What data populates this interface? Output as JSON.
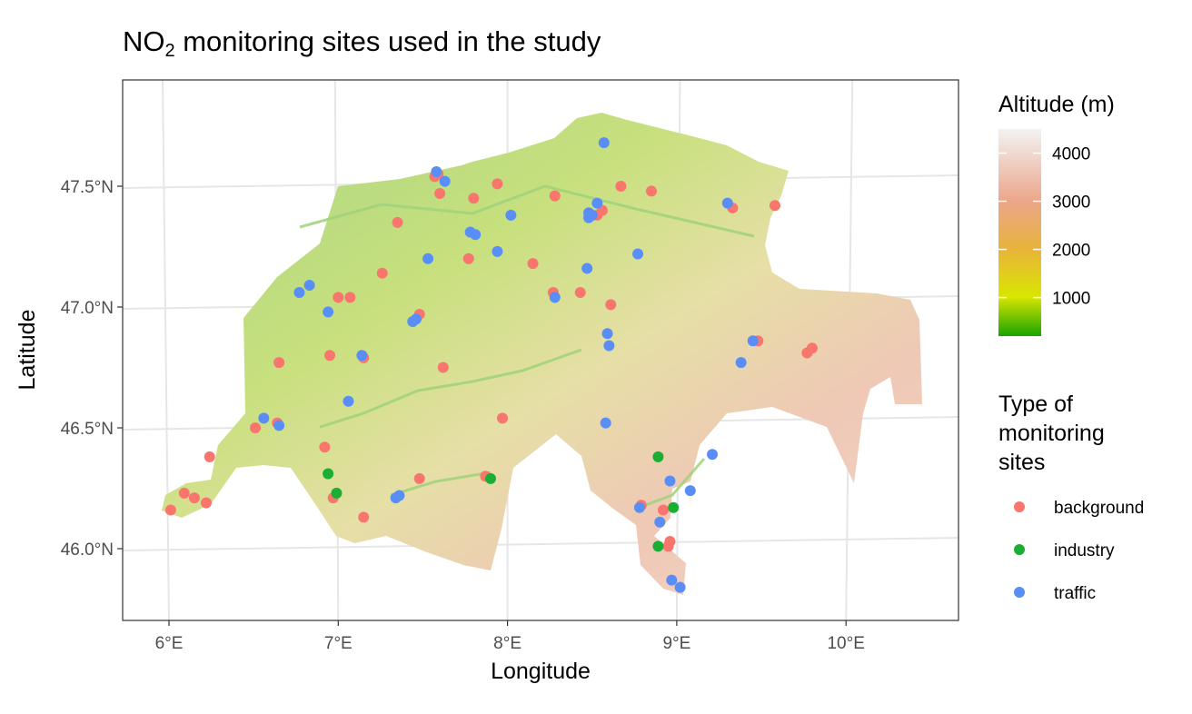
{
  "chart_data": {
    "type": "scatter",
    "title_main": "NO",
    "title_sub": "2",
    "title_rest": " monitoring sites used in the study",
    "xlabel": "Longitude",
    "ylabel": "Latitude",
    "xlim": [
      5.73,
      10.67
    ],
    "ylim": [
      45.73,
      47.93
    ],
    "x_ticks": [
      {
        "value": 6,
        "label": "6°E"
      },
      {
        "value": 7,
        "label": "7°E"
      },
      {
        "value": 8,
        "label": "8°E"
      },
      {
        "value": 9,
        "label": "9°E"
      },
      {
        "value": 10,
        "label": "10°E"
      }
    ],
    "y_ticks": [
      {
        "value": 46.0,
        "label": "46.0°N"
      },
      {
        "value": 46.5,
        "label": "46.5°N"
      },
      {
        "value": 47.0,
        "label": "47.0°N"
      },
      {
        "value": 47.5,
        "label": "47.5°N"
      }
    ],
    "grid": true,
    "altitude_legend": {
      "title": "Altitude (m)",
      "range": [
        200,
        4500
      ],
      "breaks": [
        {
          "value": 1000,
          "label": "1000"
        },
        {
          "value": 2000,
          "label": "2000"
        },
        {
          "value": 3000,
          "label": "3000"
        },
        {
          "value": 4000,
          "label": "4000"
        }
      ],
      "colors": [
        "#1aa300",
        "#d9e600",
        "#e8b33a",
        "#eba68a",
        "#f2f2f2"
      ]
    },
    "points_legend": {
      "title_lines": [
        "Type of",
        "monitoring",
        "sites"
      ],
      "placement": "right"
    },
    "series": [
      {
        "name": "background",
        "color": "#f8766d",
        "points": [
          [
            6.01,
            46.16
          ],
          [
            6.09,
            46.23
          ],
          [
            6.15,
            46.21
          ],
          [
            6.22,
            46.19
          ],
          [
            6.24,
            46.38
          ],
          [
            6.51,
            46.5
          ],
          [
            6.64,
            46.52
          ],
          [
            6.65,
            46.77
          ],
          [
            6.92,
            46.42
          ],
          [
            6.95,
            46.8
          ],
          [
            6.97,
            46.21
          ],
          [
            7.0,
            47.04
          ],
          [
            7.07,
            47.04
          ],
          [
            7.15,
            46.79
          ],
          [
            7.15,
            46.13
          ],
          [
            7.26,
            47.14
          ],
          [
            7.35,
            47.35
          ],
          [
            7.48,
            46.97
          ],
          [
            7.48,
            46.29
          ],
          [
            7.57,
            47.54
          ],
          [
            7.59,
            47.55
          ],
          [
            7.6,
            47.47
          ],
          [
            7.62,
            46.75
          ],
          [
            7.77,
            47.2
          ],
          [
            7.8,
            47.45
          ],
          [
            7.87,
            46.3
          ],
          [
            7.94,
            47.51
          ],
          [
            7.97,
            46.54
          ],
          [
            8.15,
            47.18
          ],
          [
            8.27,
            47.06
          ],
          [
            8.28,
            47.46
          ],
          [
            8.43,
            47.06
          ],
          [
            8.53,
            47.38
          ],
          [
            8.56,
            47.4
          ],
          [
            8.61,
            47.01
          ],
          [
            8.67,
            47.5
          ],
          [
            8.85,
            47.48
          ],
          [
            8.79,
            46.18
          ],
          [
            8.92,
            46.16
          ],
          [
            8.95,
            46.01
          ],
          [
            8.96,
            46.03
          ],
          [
            9.33,
            47.41
          ],
          [
            9.48,
            46.86
          ],
          [
            9.58,
            47.42
          ],
          [
            9.77,
            46.81
          ],
          [
            9.8,
            46.83
          ]
        ]
      },
      {
        "name": "industry",
        "color": "#1aae34",
        "points": [
          [
            6.94,
            46.31
          ],
          [
            6.99,
            46.23
          ],
          [
            7.9,
            46.29
          ],
          [
            8.89,
            46.38
          ],
          [
            8.89,
            46.01
          ],
          [
            8.98,
            46.17
          ]
        ]
      },
      {
        "name": "traffic",
        "color": "#5a8ef7",
        "points": [
          [
            6.56,
            46.54
          ],
          [
            6.65,
            46.51
          ],
          [
            6.77,
            47.06
          ],
          [
            6.83,
            47.09
          ],
          [
            6.94,
            46.98
          ],
          [
            7.06,
            46.61
          ],
          [
            7.14,
            46.8
          ],
          [
            7.34,
            46.21
          ],
          [
            7.36,
            46.22
          ],
          [
            7.44,
            46.94
          ],
          [
            7.46,
            46.95
          ],
          [
            7.53,
            47.2
          ],
          [
            7.58,
            47.56
          ],
          [
            7.63,
            47.52
          ],
          [
            7.78,
            47.31
          ],
          [
            7.81,
            47.3
          ],
          [
            7.94,
            47.23
          ],
          [
            8.02,
            47.38
          ],
          [
            8.28,
            47.04
          ],
          [
            8.47,
            47.16
          ],
          [
            8.48,
            47.39
          ],
          [
            8.48,
            47.37
          ],
          [
            8.5,
            47.38
          ],
          [
            8.53,
            47.43
          ],
          [
            8.57,
            47.68
          ],
          [
            8.59,
            46.89
          ],
          [
            8.6,
            46.84
          ],
          [
            8.58,
            46.52
          ],
          [
            8.77,
            47.22
          ],
          [
            8.78,
            46.17
          ],
          [
            8.9,
            46.11
          ],
          [
            8.96,
            46.28
          ],
          [
            9.08,
            46.24
          ],
          [
            8.97,
            45.87
          ],
          [
            9.02,
            45.84
          ],
          [
            9.21,
            46.39
          ],
          [
            9.3,
            47.43
          ],
          [
            9.38,
            46.77
          ],
          [
            9.45,
            46.86
          ]
        ]
      }
    ]
  }
}
